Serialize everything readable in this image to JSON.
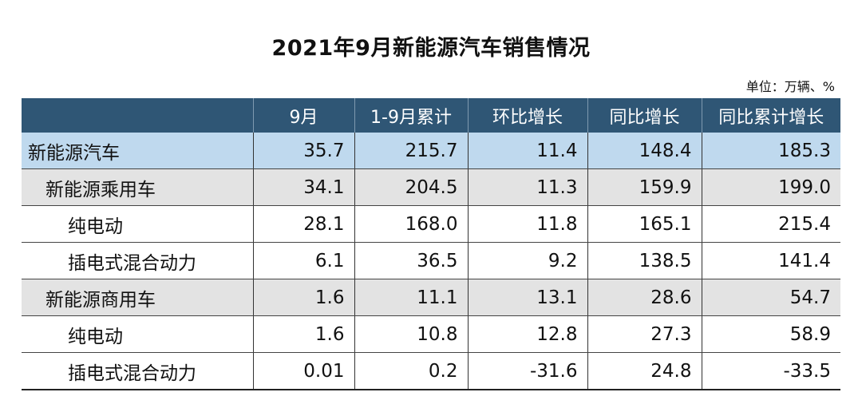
{
  "title": "2021年9月新能源汽车销售情况",
  "unit": "单位：万辆、%",
  "columns": [
    "",
    "9月",
    "1-9月累计",
    "环比增长",
    "同比增长",
    "同比累计增长"
  ],
  "rows": [
    {
      "name": "新能源汽车",
      "level": 0,
      "values": [
        "35.7",
        "215.7",
        "11.4",
        "148.4",
        "185.3"
      ]
    },
    {
      "name": "新能源乘用车",
      "level": 1,
      "values": [
        "34.1",
        "204.5",
        "11.3",
        "159.9",
        "199.0"
      ]
    },
    {
      "name": "纯电动",
      "level": 2,
      "values": [
        "28.1",
        "168.0",
        "11.8",
        "165.1",
        "215.4"
      ]
    },
    {
      "name": "插电式混合动力",
      "level": 2,
      "values": [
        "6.1",
        "36.5",
        "9.2",
        "138.5",
        "141.4"
      ]
    },
    {
      "name": "新能源商用车",
      "level": 1,
      "values": [
        "1.6",
        "11.1",
        "13.1",
        "28.6",
        "54.7"
      ]
    },
    {
      "name": "纯电动",
      "level": 2,
      "values": [
        "1.6",
        "10.8",
        "12.8",
        "27.3",
        "58.9"
      ]
    },
    {
      "name": "插电式混合动力",
      "level": 2,
      "values": [
        "0.01",
        "0.2",
        "-31.6",
        "24.8",
        "-33.5"
      ]
    }
  ],
  "colors": {
    "header_bg": "#2f5675",
    "total_row_bg": "#bfd9ee",
    "subtotal_row_bg": "#e3e3e3"
  }
}
